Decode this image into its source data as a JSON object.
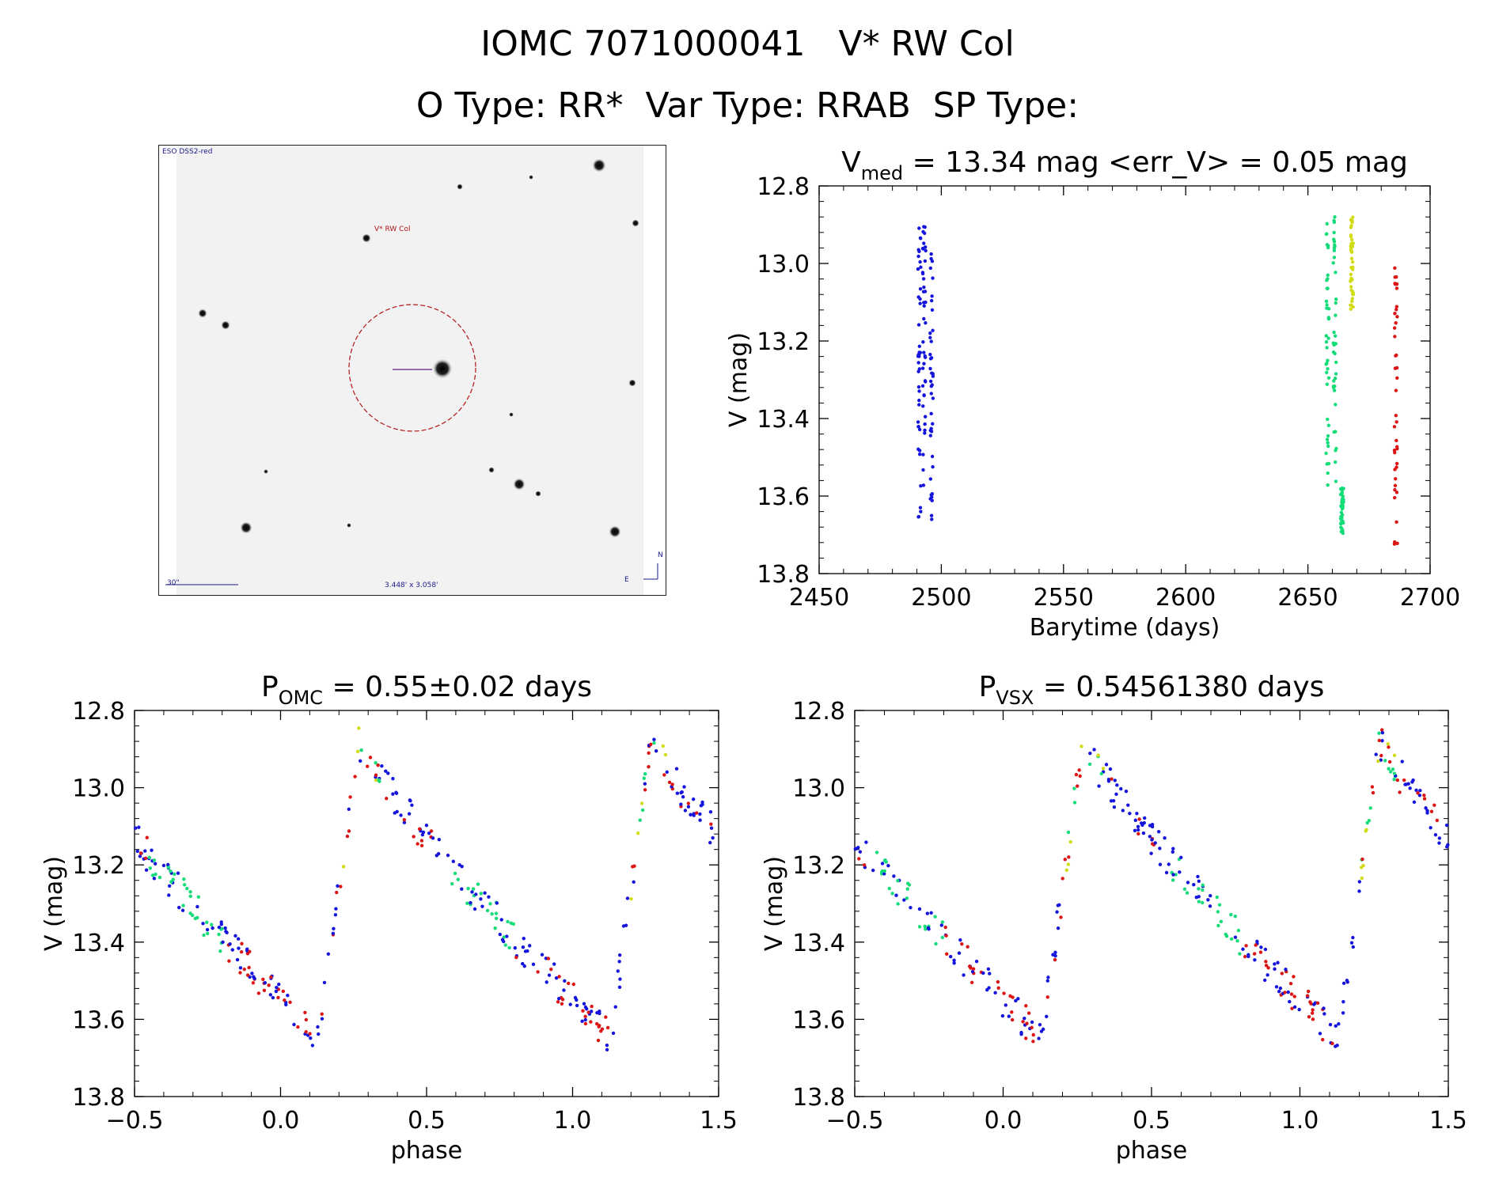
{
  "header": {
    "title_line1": "IOMC 7071000041   V* RW Col",
    "title_line2": "O Type: RR*  Var Type: RRAB  SP Type:"
  },
  "finder_chart": {
    "survey_label": "ESO DSS2-red",
    "target_label": "V* RW Col",
    "scale_label": "30\"",
    "fov_label": "3.448' x 3.058'",
    "compass_n": "N",
    "compass_e": "E",
    "target_circle_color": "#b01414"
  },
  "colors": {
    "blue": "#1414dc",
    "green": "#14dc78",
    "yellow": "#d2dc14",
    "red": "#dc1414"
  },
  "chart_data": [
    {
      "type": "scatter",
      "title_main": "V",
      "title_sub": "med",
      "title_rest": " = 13.34 mag <err_V> = 0.05 mag",
      "xlabel": "Barytime (days)",
      "ylabel": "V (mag)",
      "xlim": [
        2450,
        2700
      ],
      "ylim": [
        13.8,
        12.8
      ],
      "xticks": [
        "2450",
        "2500",
        "2550",
        "2600",
        "2650",
        "2700"
      ],
      "yticks": [
        "12.8",
        "13.0",
        "13.2",
        "13.4",
        "13.6",
        "13.8"
      ],
      "series": [
        {
          "color": "blue",
          "clusters": [
            {
              "x": 2491,
              "y": [
                12.87,
                13.69
              ]
            },
            {
              "x": 2493,
              "y": [
                12.9,
                13.65
              ]
            },
            {
              "x": 2496,
              "y": [
                12.95,
                13.68
              ]
            }
          ]
        },
        {
          "color": "green",
          "clusters": [
            {
              "x": 2658,
              "y": [
                12.86,
                13.6
              ]
            },
            {
              "x": 2661,
              "y": [
                12.88,
                13.59
              ]
            },
            {
              "x": 2664,
              "y": [
                13.58,
                13.7
              ]
            }
          ]
        },
        {
          "color": "yellow",
          "clusters": [
            {
              "x": 2668,
              "y": [
                12.87,
                13.12
              ]
            }
          ]
        },
        {
          "color": "red",
          "clusters": [
            {
              "x": 2686,
              "y": [
                12.96,
                13.74
              ]
            }
          ]
        }
      ]
    },
    {
      "type": "scatter",
      "title_main": "P",
      "title_sub": "OMC",
      "title_rest": " = 0.55±0.02 days",
      "xlabel": "phase",
      "ylabel": "V (mag)",
      "xlim": [
        -0.5,
        1.5
      ],
      "ylim": [
        13.8,
        12.8
      ],
      "xticks": [
        "−0.5",
        "0.0",
        "0.5",
        "1.0",
        "1.5"
      ],
      "yticks": [
        "12.8",
        "13.0",
        "13.2",
        "13.4",
        "13.6",
        "13.8"
      ],
      "light_curve": {
        "max_phase": 0.27,
        "max_mag": 12.88,
        "min_phase": 0.07,
        "min_mag": 13.65,
        "shoulder_phase": -0.5,
        "shoulder_mag": 13.26
      }
    },
    {
      "type": "scatter",
      "title_main": "P",
      "title_sub": "VSX",
      "title_rest": " = 0.54561380 days",
      "xlabel": "phase",
      "ylabel": "V (mag)",
      "xlim": [
        -0.5,
        1.5
      ],
      "ylim": [
        13.8,
        12.8
      ],
      "xticks": [
        "−0.5",
        "0.0",
        "0.5",
        "1.0",
        "1.5"
      ],
      "yticks": [
        "12.8",
        "13.0",
        "13.2",
        "13.4",
        "13.6",
        "13.8"
      ],
      "light_curve": {
        "max_phase": 0.27,
        "max_mag": 12.88,
        "min_phase": 0.07,
        "min_mag": 13.65,
        "shoulder_phase": -0.5,
        "shoulder_mag": 13.26
      }
    }
  ]
}
